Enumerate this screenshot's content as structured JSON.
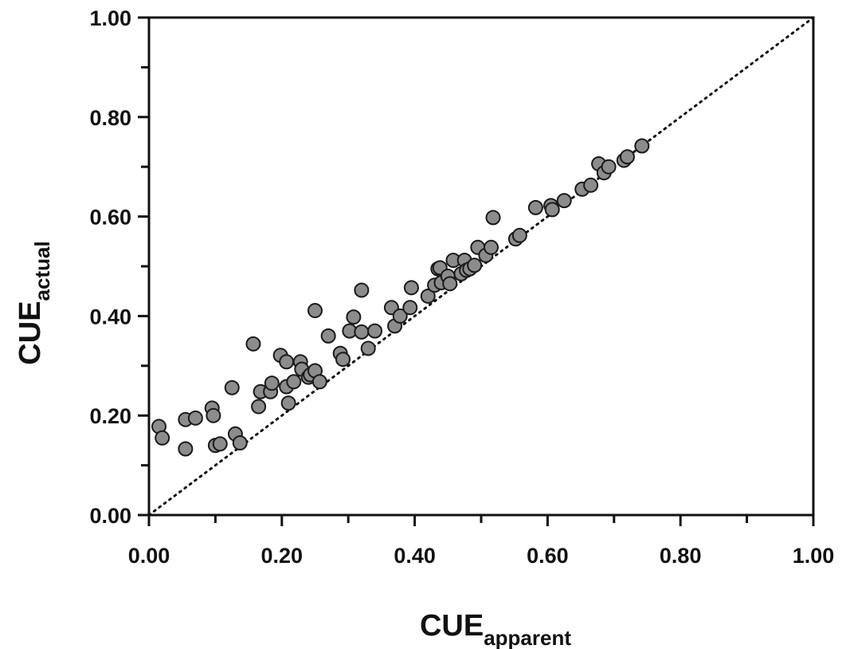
{
  "chart_data": {
    "type": "scatter",
    "title": "",
    "xlabel": {
      "main": "CUE",
      "sub": "apparent"
    },
    "ylabel": {
      "main": "CUE",
      "sub": "actual"
    },
    "xlim": [
      0,
      1
    ],
    "ylim": [
      0,
      1
    ],
    "x_ticks": [
      "0.00",
      "0.20",
      "0.40",
      "0.60",
      "0.80",
      "1.00"
    ],
    "y_ticks": [
      "0.00",
      "0.20",
      "0.40",
      "0.60",
      "0.80",
      "1.00"
    ],
    "grid": false,
    "legend": "none",
    "reference_line": {
      "style": "dotted",
      "from": [
        0,
        0
      ],
      "to": [
        1,
        1
      ]
    },
    "marker_fill": "#8c8c8c",
    "marker_stroke": "#1a1a1a",
    "points": [
      {
        "x": 0.015,
        "y": 0.178
      },
      {
        "x": 0.02,
        "y": 0.155
      },
      {
        "x": 0.055,
        "y": 0.192
      },
      {
        "x": 0.055,
        "y": 0.133
      },
      {
        "x": 0.07,
        "y": 0.195
      },
      {
        "x": 0.095,
        "y": 0.215
      },
      {
        "x": 0.097,
        "y": 0.2
      },
      {
        "x": 0.1,
        "y": 0.14
      },
      {
        "x": 0.107,
        "y": 0.143
      },
      {
        "x": 0.125,
        "y": 0.256
      },
      {
        "x": 0.13,
        "y": 0.163
      },
      {
        "x": 0.137,
        "y": 0.145
      },
      {
        "x": 0.157,
        "y": 0.344
      },
      {
        "x": 0.165,
        "y": 0.218
      },
      {
        "x": 0.168,
        "y": 0.248
      },
      {
        "x": 0.183,
        "y": 0.248
      },
      {
        "x": 0.185,
        "y": 0.265
      },
      {
        "x": 0.198,
        "y": 0.321
      },
      {
        "x": 0.207,
        "y": 0.308
      },
      {
        "x": 0.207,
        "y": 0.258
      },
      {
        "x": 0.21,
        "y": 0.225
      },
      {
        "x": 0.218,
        "y": 0.268
      },
      {
        "x": 0.228,
        "y": 0.308
      },
      {
        "x": 0.23,
        "y": 0.293
      },
      {
        "x": 0.24,
        "y": 0.277
      },
      {
        "x": 0.243,
        "y": 0.282
      },
      {
        "x": 0.25,
        "y": 0.411
      },
      {
        "x": 0.25,
        "y": 0.29
      },
      {
        "x": 0.257,
        "y": 0.268
      },
      {
        "x": 0.27,
        "y": 0.36
      },
      {
        "x": 0.288,
        "y": 0.325
      },
      {
        "x": 0.292,
        "y": 0.313
      },
      {
        "x": 0.302,
        "y": 0.37
      },
      {
        "x": 0.308,
        "y": 0.398
      },
      {
        "x": 0.32,
        "y": 0.452
      },
      {
        "x": 0.32,
        "y": 0.368
      },
      {
        "x": 0.33,
        "y": 0.335
      },
      {
        "x": 0.34,
        "y": 0.37
      },
      {
        "x": 0.365,
        "y": 0.417
      },
      {
        "x": 0.37,
        "y": 0.38
      },
      {
        "x": 0.378,
        "y": 0.4
      },
      {
        "x": 0.393,
        "y": 0.417
      },
      {
        "x": 0.395,
        "y": 0.457
      },
      {
        "x": 0.42,
        "y": 0.44
      },
      {
        "x": 0.43,
        "y": 0.462
      },
      {
        "x": 0.435,
        "y": 0.495
      },
      {
        "x": 0.438,
        "y": 0.497
      },
      {
        "x": 0.44,
        "y": 0.467
      },
      {
        "x": 0.45,
        "y": 0.48
      },
      {
        "x": 0.453,
        "y": 0.465
      },
      {
        "x": 0.458,
        "y": 0.512
      },
      {
        "x": 0.47,
        "y": 0.485
      },
      {
        "x": 0.475,
        "y": 0.512
      },
      {
        "x": 0.478,
        "y": 0.492
      },
      {
        "x": 0.483,
        "y": 0.495
      },
      {
        "x": 0.49,
        "y": 0.502
      },
      {
        "x": 0.495,
        "y": 0.538
      },
      {
        "x": 0.507,
        "y": 0.522
      },
      {
        "x": 0.515,
        "y": 0.538
      },
      {
        "x": 0.518,
        "y": 0.598
      },
      {
        "x": 0.552,
        "y": 0.555
      },
      {
        "x": 0.558,
        "y": 0.562
      },
      {
        "x": 0.582,
        "y": 0.618
      },
      {
        "x": 0.605,
        "y": 0.622
      },
      {
        "x": 0.607,
        "y": 0.614
      },
      {
        "x": 0.625,
        "y": 0.632
      },
      {
        "x": 0.652,
        "y": 0.655
      },
      {
        "x": 0.665,
        "y": 0.663
      },
      {
        "x": 0.677,
        "y": 0.706
      },
      {
        "x": 0.685,
        "y": 0.688
      },
      {
        "x": 0.692,
        "y": 0.7
      },
      {
        "x": 0.715,
        "y": 0.713
      },
      {
        "x": 0.72,
        "y": 0.72
      },
      {
        "x": 0.742,
        "y": 0.742
      }
    ]
  }
}
